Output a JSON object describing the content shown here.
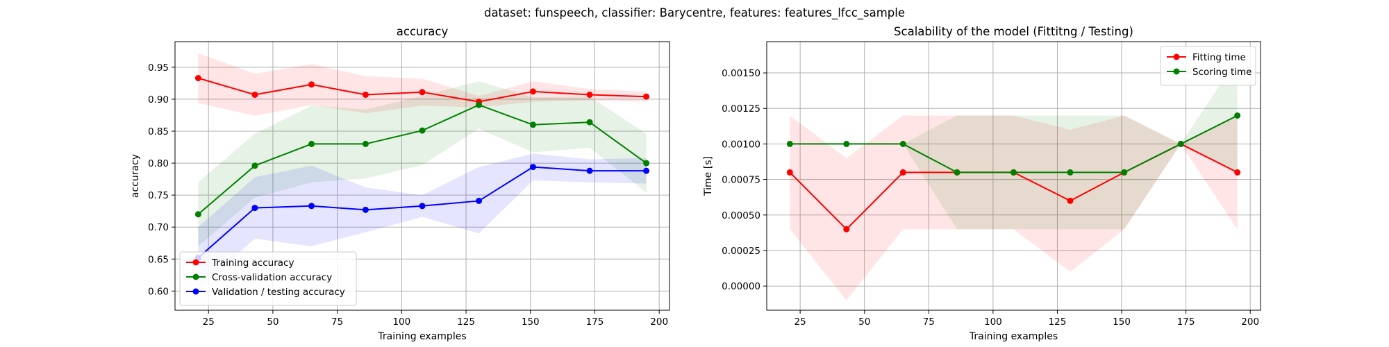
{
  "figure": {
    "suptitle": "dataset: funspeech, classifier: Barycentre, features: features_lfcc_sample"
  },
  "chart_data": [
    {
      "type": "line",
      "title": "accuracy",
      "xlabel": "Training examples",
      "ylabel": "accuracy",
      "xlim": [
        12,
        204
      ],
      "ylim": [
        0.57,
        0.99
      ],
      "xticks": [
        25,
        50,
        75,
        100,
        125,
        150,
        175,
        200
      ],
      "yticks": [
        0.6,
        0.65,
        0.7,
        0.75,
        0.8,
        0.85,
        0.9,
        0.95
      ],
      "ytick_labels": [
        "0.60",
        "0.65",
        "0.70",
        "0.75",
        "0.80",
        "0.85",
        "0.90",
        "0.95"
      ],
      "grid": true,
      "legend": "lower left",
      "x": [
        21,
        43,
        65,
        86,
        108,
        130,
        151,
        173,
        195
      ],
      "series": [
        {
          "name": "Training accuracy",
          "color": "#ff0000",
          "values": [
            0.933,
            0.907,
            0.923,
            0.907,
            0.911,
            0.896,
            0.912,
            0.907,
            0.904
          ],
          "upper": [
            0.972,
            0.94,
            0.955,
            0.936,
            0.932,
            0.905,
            0.928,
            0.916,
            0.912
          ],
          "lower": [
            0.894,
            0.874,
            0.891,
            0.878,
            0.89,
            0.887,
            0.896,
            0.898,
            0.896
          ]
        },
        {
          "name": "Cross-validation accuracy",
          "color": "#008000",
          "values": [
            0.72,
            0.796,
            0.83,
            0.83,
            0.851,
            0.891,
            0.86,
            0.864,
            0.8
          ],
          "upper": [
            0.77,
            0.846,
            0.89,
            0.884,
            0.905,
            0.928,
            0.903,
            0.904,
            0.846
          ],
          "lower": [
            0.67,
            0.746,
            0.77,
            0.776,
            0.797,
            0.854,
            0.817,
            0.824,
            0.754
          ]
        },
        {
          "name": "Validation / testing accuracy",
          "color": "#0000ff",
          "values": [
            0.652,
            0.73,
            0.733,
            0.727,
            0.733,
            0.741,
            0.794,
            0.788,
            0.788
          ],
          "upper": [
            0.7,
            0.778,
            0.796,
            0.762,
            0.75,
            0.794,
            0.815,
            0.806,
            0.808
          ],
          "lower": [
            0.604,
            0.682,
            0.67,
            0.692,
            0.716,
            0.69,
            0.773,
            0.77,
            0.768
          ]
        }
      ]
    },
    {
      "type": "line",
      "title": "Scalability of the model (Fittitng / Testing)",
      "xlabel": "Training examples",
      "ylabel": "Time [s]",
      "xlim": [
        12,
        204
      ],
      "ylim": [
        -0.00017,
        0.00172
      ],
      "xticks": [
        25,
        50,
        75,
        100,
        125,
        150,
        175,
        200
      ],
      "yticks": [
        0.0,
        0.00025,
        0.0005,
        0.00075,
        0.001,
        0.00125,
        0.0015
      ],
      "ytick_labels": [
        "0.00000",
        "0.00025",
        "0.00050",
        "0.00075",
        "0.00100",
        "0.00125",
        "0.00150"
      ],
      "grid": true,
      "legend": "upper right",
      "x": [
        21,
        43,
        65,
        86,
        108,
        130,
        151,
        173,
        195
      ],
      "series": [
        {
          "name": "Fitting time",
          "color": "#ff0000",
          "values": [
            0.0008,
            0.0004,
            0.0008,
            0.0008,
            0.0008,
            0.0006,
            0.0008,
            0.001,
            0.0008
          ],
          "upper": [
            0.0012,
            0.0009,
            0.0012,
            0.0012,
            0.0012,
            0.0011,
            0.0012,
            0.001,
            0.0012
          ],
          "lower": [
            0.0004,
            -0.0001,
            0.0004,
            0.0004,
            0.0004,
            0.0001,
            0.0004,
            0.001,
            0.0004
          ]
        },
        {
          "name": "Scoring time",
          "color": "#008000",
          "values": [
            0.001,
            0.001,
            0.001,
            0.0008,
            0.0008,
            0.0008,
            0.0008,
            0.001,
            0.0012
          ],
          "upper": [
            0.001,
            0.001,
            0.001,
            0.0012,
            0.0012,
            0.0012,
            0.0012,
            0.001,
            0.0016
          ],
          "lower": [
            0.001,
            0.001,
            0.001,
            0.0004,
            0.0004,
            0.0004,
            0.0004,
            0.001,
            0.0008
          ]
        }
      ]
    }
  ]
}
